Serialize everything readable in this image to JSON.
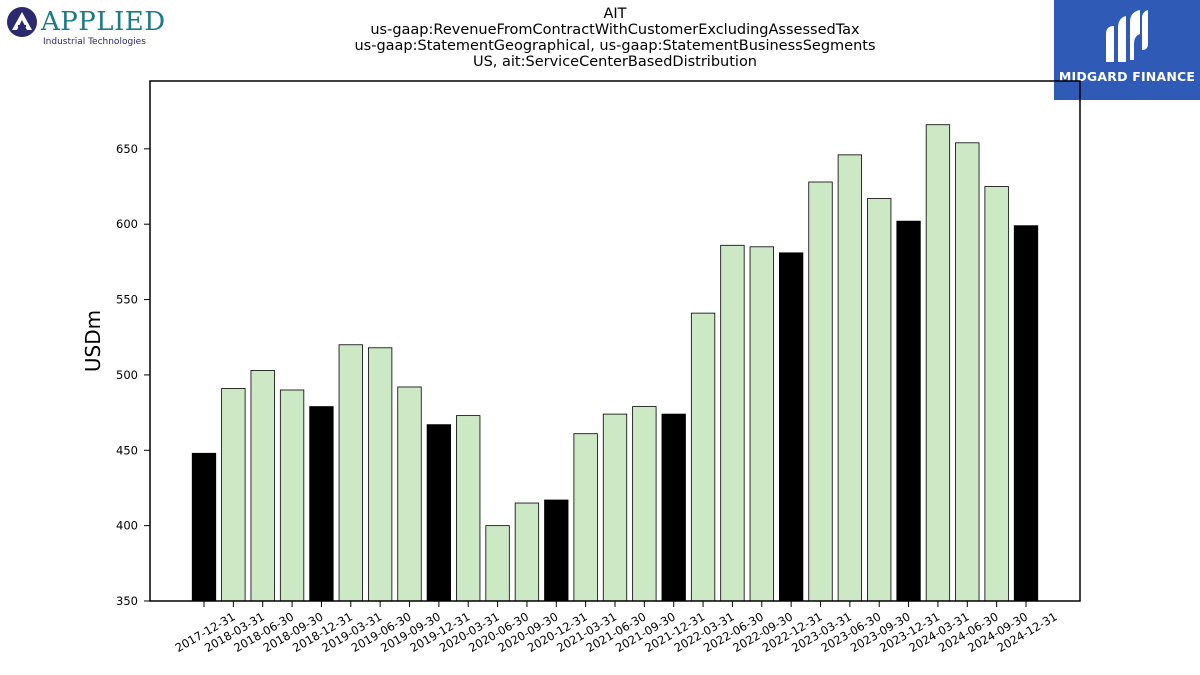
{
  "branding": {
    "left_logo_name": "APPLIED",
    "left_logo_subtitle": "Industrial Technologies",
    "right_logo_name": "MIDGARD FINANCE"
  },
  "chart_data": {
    "type": "bar",
    "title_lines": [
      "AIT",
      "us-gaap:RevenueFromContractWithCustomerExcludingAssessedTax",
      "us-gaap:StatementGeographical, us-gaap:StatementBusinessSegments",
      "US, ait:ServiceCenterBasedDistribution"
    ],
    "xlabel": "",
    "ylabel": "USDm",
    "ylim": [
      350,
      695
    ],
    "yticks": [
      350,
      400,
      450,
      500,
      550,
      600,
      650
    ],
    "grid": false,
    "legend": "none",
    "colors": {
      "quarter": "#cde8c4",
      "year_end": "#000000",
      "edge": "#000000"
    },
    "categories": [
      "2017-12-31",
      "2018-03-31",
      "2018-06-30",
      "2018-09-30",
      "2018-12-31",
      "2019-03-31",
      "2019-06-30",
      "2019-09-30",
      "2019-12-31",
      "2020-03-31",
      "2020-06-30",
      "2020-09-30",
      "2020-12-31",
      "2021-03-31",
      "2021-06-30",
      "2021-09-30",
      "2021-12-31",
      "2022-03-31",
      "2022-06-30",
      "2022-09-30",
      "2022-12-31",
      "2023-03-31",
      "2023-06-30",
      "2023-09-30",
      "2023-12-31",
      "2024-03-31",
      "2024-06-30",
      "2024-09-30",
      "2024-12-31"
    ],
    "values": [
      448,
      491,
      503,
      490,
      479,
      520,
      518,
      492,
      467,
      473,
      400,
      415,
      417,
      461,
      474,
      479,
      474,
      541,
      586,
      585,
      581,
      628,
      646,
      617,
      602,
      666,
      654,
      625,
      599
    ],
    "year_end": [
      true,
      false,
      false,
      false,
      true,
      false,
      false,
      false,
      true,
      false,
      false,
      false,
      true,
      false,
      false,
      false,
      true,
      false,
      false,
      false,
      true,
      false,
      false,
      false,
      true,
      false,
      false,
      false,
      true
    ]
  }
}
